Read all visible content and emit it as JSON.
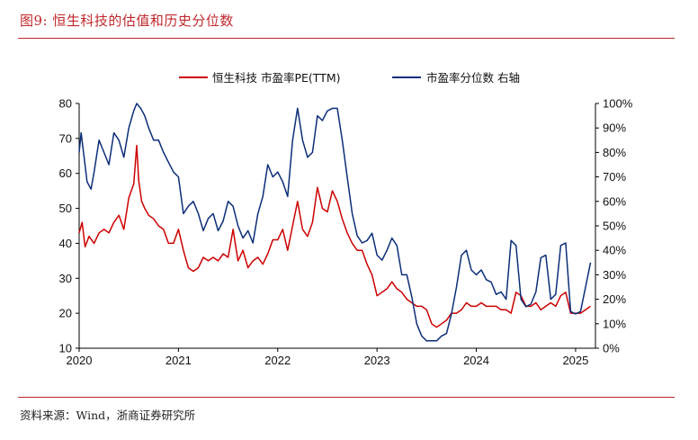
{
  "figure": {
    "title": "图9:  恒生科技的估值和历史分位数",
    "source": "资料来源：Wind，浙商证券研究所"
  },
  "chart_data": {
    "type": "line",
    "legend_placement": "top-center",
    "x_tick_labels": [
      "2020",
      "2021",
      "2022",
      "2023",
      "2024",
      "2025"
    ],
    "xlim": [
      2020.0,
      2025.2
    ],
    "left_axis": {
      "ylim": [
        10,
        80
      ],
      "ticks": [
        "10",
        "20",
        "30",
        "40",
        "50",
        "60",
        "70",
        "80"
      ]
    },
    "right_axis": {
      "ylim": [
        0,
        100
      ],
      "ticks": [
        "0%",
        "10%",
        "20%",
        "30%",
        "40%",
        "50%",
        "60%",
        "70%",
        "80%",
        "90%",
        "100%"
      ]
    },
    "series": [
      {
        "name": "恒生科技 市盈率PE(TTM)",
        "axis": "left",
        "color": "#cc0000",
        "x": [
          2020.0,
          2020.03,
          2020.06,
          2020.1,
          2020.15,
          2020.2,
          2020.25,
          2020.3,
          2020.35,
          2020.4,
          2020.45,
          2020.5,
          2020.55,
          2020.58,
          2020.6,
          2020.63,
          2020.66,
          2020.7,
          2020.75,
          2020.8,
          2020.85,
          2020.9,
          2020.95,
          2021.0,
          2021.05,
          2021.1,
          2021.15,
          2021.2,
          2021.25,
          2021.3,
          2021.35,
          2021.4,
          2021.45,
          2021.5,
          2021.55,
          2021.6,
          2021.65,
          2021.7,
          2021.75,
          2021.8,
          2021.85,
          2021.9,
          2021.95,
          2022.0,
          2022.05,
          2022.1,
          2022.15,
          2022.2,
          2022.25,
          2022.3,
          2022.35,
          2022.4,
          2022.45,
          2022.5,
          2022.55,
          2022.6,
          2022.65,
          2022.7,
          2022.75,
          2022.8,
          2022.85,
          2022.9,
          2022.95,
          2023.0,
          2023.05,
          2023.1,
          2023.15,
          2023.2,
          2023.25,
          2023.3,
          2023.35,
          2023.4,
          2023.45,
          2023.5,
          2023.55,
          2023.6,
          2023.65,
          2023.7,
          2023.75,
          2023.8,
          2023.85,
          2023.9,
          2023.95,
          2024.0,
          2024.05,
          2024.1,
          2024.15,
          2024.2,
          2024.25,
          2024.3,
          2024.35,
          2024.4,
          2024.45,
          2024.5,
          2024.55,
          2024.6,
          2024.65,
          2024.7,
          2024.75,
          2024.8,
          2024.85,
          2024.9,
          2024.95,
          2025.0,
          2025.05,
          2025.1,
          2025.15
        ],
        "values": [
          43,
          46,
          39,
          42,
          40,
          43,
          44,
          43,
          46,
          48,
          44,
          53,
          57,
          68,
          58,
          52,
          50,
          48,
          47,
          45,
          44,
          40,
          40,
          44,
          38,
          33,
          32,
          33,
          36,
          35,
          36,
          35,
          37,
          36,
          44,
          35,
          38,
          33,
          35,
          36,
          34,
          37,
          41,
          41,
          44,
          38,
          45,
          52,
          44,
          42,
          46,
          56,
          50,
          49,
          55,
          52,
          47,
          43,
          40,
          38,
          38,
          34,
          31,
          25,
          26,
          27,
          29,
          27,
          26,
          24,
          23,
          22,
          22,
          21,
          17,
          16,
          17,
          18,
          20,
          20,
          21,
          23,
          22,
          22,
          23,
          22,
          22,
          22,
          21,
          21,
          20,
          26,
          25,
          22,
          22,
          23,
          21,
          22,
          23,
          22,
          25,
          26,
          20,
          20,
          20,
          21,
          22
        ]
      },
      {
        "name": "市盈率分位数 右轴",
        "axis": "right",
        "color": "#0c2e78",
        "x": [
          2020.0,
          2020.02,
          2020.05,
          2020.08,
          2020.12,
          2020.15,
          2020.2,
          2020.25,
          2020.3,
          2020.35,
          2020.4,
          2020.45,
          2020.5,
          2020.55,
          2020.58,
          2020.62,
          2020.66,
          2020.7,
          2020.75,
          2020.8,
          2020.85,
          2020.9,
          2020.95,
          2021.0,
          2021.05,
          2021.1,
          2021.15,
          2021.2,
          2021.25,
          2021.3,
          2021.35,
          2021.4,
          2021.45,
          2021.5,
          2021.55,
          2021.6,
          2021.65,
          2021.7,
          2021.75,
          2021.8,
          2021.85,
          2021.9,
          2021.95,
          2022.0,
          2022.05,
          2022.1,
          2022.15,
          2022.2,
          2022.25,
          2022.3,
          2022.35,
          2022.4,
          2022.45,
          2022.5,
          2022.55,
          2022.6,
          2022.65,
          2022.7,
          2022.75,
          2022.8,
          2022.85,
          2022.9,
          2022.95,
          2023.0,
          2023.05,
          2023.1,
          2023.15,
          2023.2,
          2023.25,
          2023.3,
          2023.35,
          2023.4,
          2023.45,
          2023.5,
          2023.55,
          2023.6,
          2023.65,
          2023.7,
          2023.75,
          2023.8,
          2023.85,
          2023.9,
          2023.95,
          2024.0,
          2024.05,
          2024.1,
          2024.15,
          2024.2,
          2024.25,
          2024.3,
          2024.35,
          2024.4,
          2024.45,
          2024.5,
          2024.55,
          2024.6,
          2024.65,
          2024.7,
          2024.75,
          2024.8,
          2024.85,
          2024.9,
          2024.95,
          2025.0,
          2025.05,
          2025.1,
          2025.15
        ],
        "values": [
          80,
          88,
          78,
          68,
          65,
          72,
          85,
          80,
          75,
          88,
          85,
          78,
          90,
          97,
          100,
          98,
          95,
          90,
          85,
          85,
          80,
          76,
          72,
          70,
          55,
          58,
          60,
          55,
          48,
          53,
          55,
          48,
          52,
          60,
          58,
          50,
          45,
          48,
          43,
          55,
          62,
          75,
          70,
          72,
          68,
          62,
          85,
          98,
          85,
          78,
          80,
          95,
          93,
          97,
          98,
          98,
          85,
          70,
          55,
          46,
          43,
          44,
          47,
          38,
          36,
          40,
          45,
          42,
          30,
          30,
          21,
          10,
          5,
          3,
          3,
          3,
          5,
          6,
          14,
          25,
          38,
          40,
          32,
          30,
          32,
          28,
          27,
          22,
          23,
          20,
          44,
          42,
          20,
          17,
          18,
          23,
          37,
          38,
          20,
          22,
          42,
          43,
          15,
          14,
          15,
          25,
          35
        ]
      }
    ]
  }
}
